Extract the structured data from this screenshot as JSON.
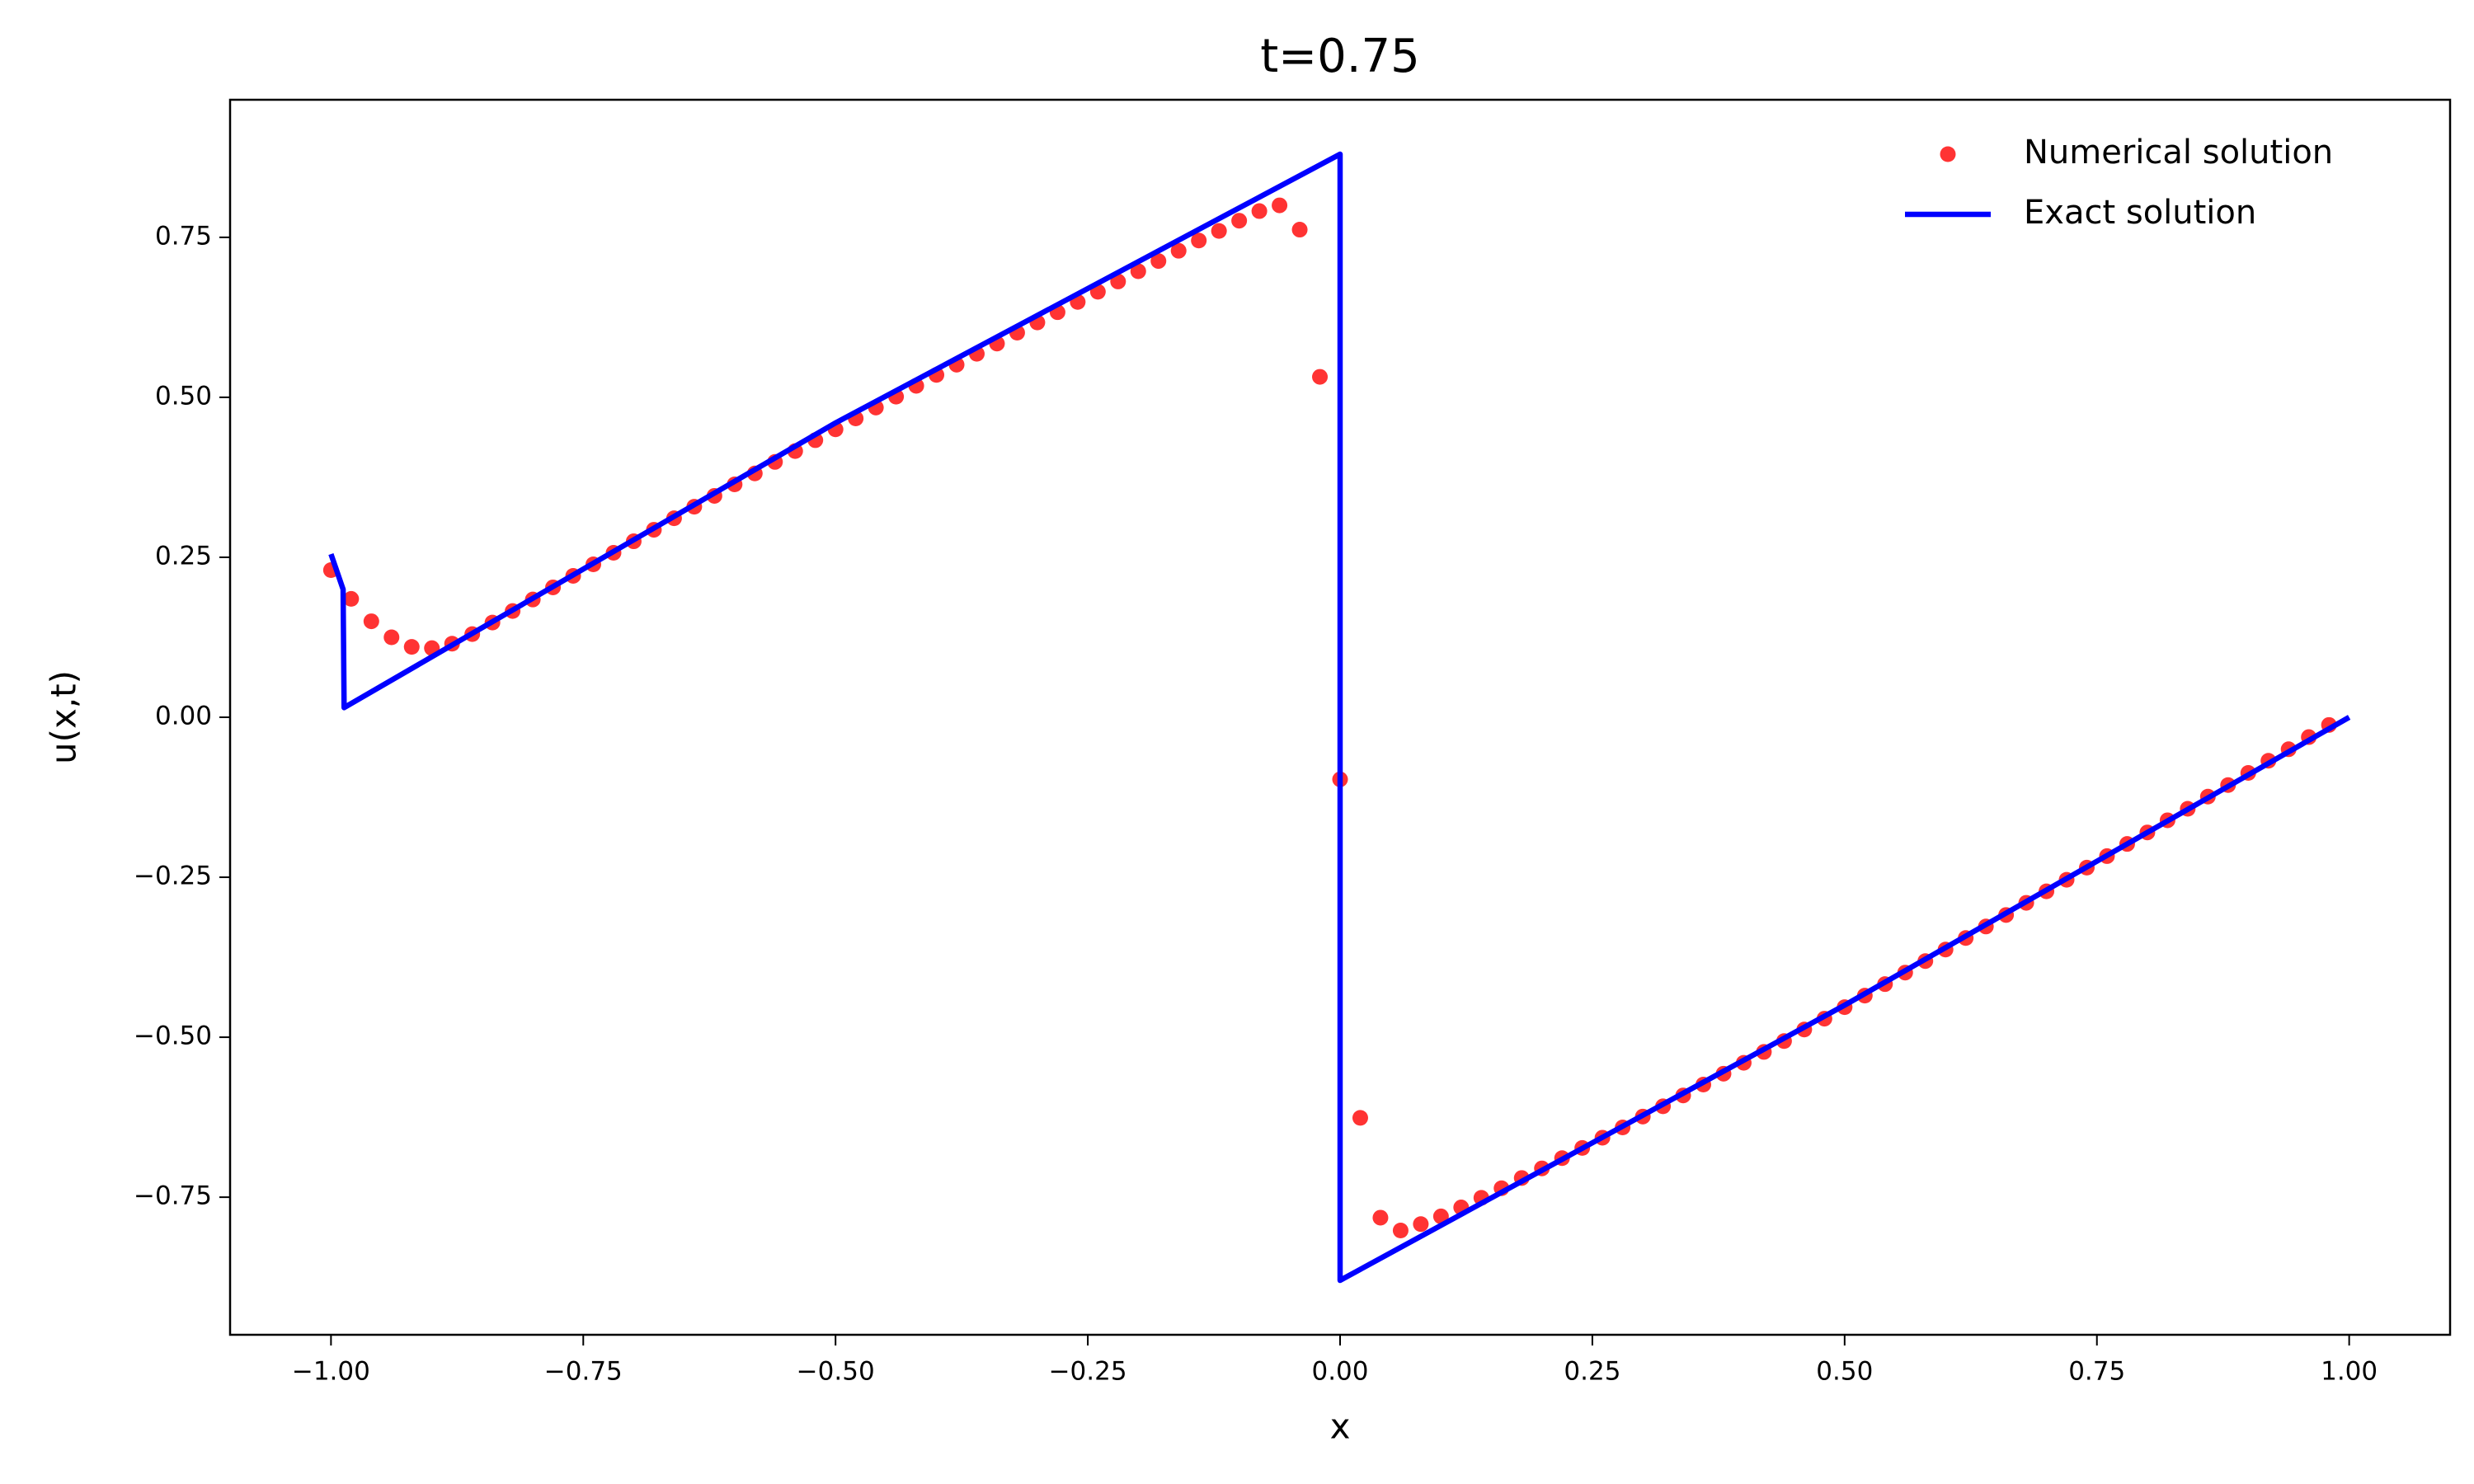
{
  "chart_data": {
    "type": "line",
    "title": "t=0.75",
    "x_label": "x",
    "y_label": "u(x,t)",
    "xlim": [
      -1.1,
      1.1
    ],
    "ylim": [
      -0.965,
      0.965
    ],
    "xticks": [
      {
        "value": -1,
        "label": "−1.00"
      },
      {
        "value": -0.75,
        "label": "−0.75"
      },
      {
        "value": -0.5,
        "label": "−0.50"
      },
      {
        "value": -0.25,
        "label": "−0.25"
      },
      {
        "value": 0,
        "label": "0.00"
      },
      {
        "value": 0.25,
        "label": "0.25"
      },
      {
        "value": 0.5,
        "label": "0.50"
      },
      {
        "value": 0.75,
        "label": "0.75"
      },
      {
        "value": 1,
        "label": "1.00"
      }
    ],
    "yticks": [
      {
        "value": -0.75,
        "label": "−0.75"
      },
      {
        "value": -0.5,
        "label": "−0.50"
      },
      {
        "value": -0.25,
        "label": "−0.25"
      },
      {
        "value": 0,
        "label": "0.00"
      },
      {
        "value": 0.25,
        "label": "0.25"
      },
      {
        "value": 0.5,
        "label": "0.50"
      },
      {
        "value": 0.75,
        "label": "0.75"
      }
    ],
    "legend": "upper right",
    "series": [
      {
        "name": "Numerical solution",
        "color": "#ff0000",
        "style": "markers",
        "x": [
          -1,
          -0.98,
          -0.96,
          -0.94,
          -0.92,
          -0.9,
          -0.88,
          -0.86,
          -0.84,
          -0.82,
          -0.8,
          -0.78,
          -0.76,
          -0.74,
          -0.72,
          -0.7,
          -0.68,
          -0.66,
          -0.64,
          -0.62,
          -0.6,
          -0.58,
          -0.56,
          -0.54,
          -0.52,
          -0.5,
          -0.48,
          -0.46,
          -0.44,
          -0.42,
          -0.4,
          -0.38,
          -0.36,
          -0.34,
          -0.32,
          -0.3,
          -0.28,
          -0.26,
          -0.24,
          -0.22,
          -0.2,
          -0.18,
          -0.16,
          -0.14,
          -0.12,
          -0.1,
          -0.08,
          -0.06,
          -0.04,
          -0.02,
          0,
          0.02,
          0.04,
          0.06,
          0.08,
          0.1,
          0.12,
          0.14,
          0.16,
          0.18,
          0.2,
          0.22,
          0.24,
          0.26,
          0.28,
          0.3,
          0.32,
          0.34,
          0.36,
          0.38,
          0.4,
          0.42,
          0.44,
          0.46,
          0.48,
          0.5,
          0.52,
          0.54,
          0.56,
          0.58,
          0.6,
          0.62,
          0.64,
          0.66,
          0.68,
          0.7,
          0.72,
          0.74,
          0.76,
          0.78,
          0.8,
          0.82,
          0.84,
          0.86,
          0.88,
          0.9,
          0.92,
          0.94,
          0.96,
          0.98
        ],
        "values": [
          0.23,
          0.185,
          0.15,
          0.125,
          0.11,
          0.108,
          0.115,
          0.13,
          0.148,
          0.166,
          0.184,
          0.203,
          0.221,
          0.239,
          0.257,
          0.275,
          0.293,
          0.311,
          0.329,
          0.346,
          0.364,
          0.381,
          0.399,
          0.416,
          0.433,
          0.45,
          0.467,
          0.484,
          0.501,
          0.518,
          0.535,
          0.551,
          0.568,
          0.584,
          0.601,
          0.617,
          0.633,
          0.649,
          0.665,
          0.681,
          0.697,
          0.713,
          0.729,
          0.745,
          0.76,
          0.776,
          0.791,
          0.8,
          0.762,
          0.532,
          -0.097,
          -0.626,
          -0.782,
          -0.802,
          -0.792,
          -0.78,
          -0.766,
          -0.751,
          -0.736,
          -0.72,
          -0.705,
          -0.689,
          -0.673,
          -0.657,
          -0.641,
          -0.624,
          -0.608,
          -0.591,
          -0.574,
          -0.557,
          -0.54,
          -0.523,
          -0.506,
          -0.488,
          -0.471,
          -0.453,
          -0.435,
          -0.417,
          -0.399,
          -0.381,
          -0.363,
          -0.345,
          -0.327,
          -0.309,
          -0.29,
          -0.272,
          -0.254,
          -0.235,
          -0.217,
          -0.198,
          -0.18,
          -0.161,
          -0.143,
          -0.124,
          -0.106,
          -0.087,
          -0.068,
          -0.05,
          -0.031,
          -0.012
        ]
      },
      {
        "name": "Exact solution",
        "color": "#0000ff",
        "style": "line",
        "x": [
          -1,
          -0.988,
          -0.987,
          -0.5,
          0,
          0,
          0.5,
          1
        ],
        "values": [
          0.255,
          0.2,
          0.015,
          0.46,
          0.88,
          -0.88,
          -0.45,
          0
        ]
      }
    ]
  }
}
